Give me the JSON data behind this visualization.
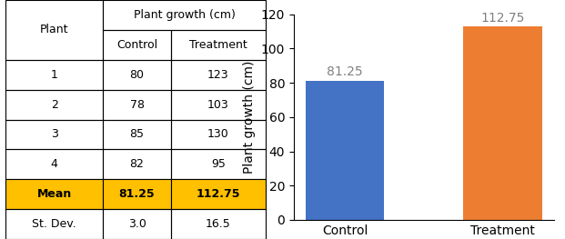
{
  "categories": [
    "Control",
    "Treatment"
  ],
  "values": [
    81.25,
    112.75
  ],
  "bar_colors": [
    "#4472c4",
    "#ed7d31"
  ],
  "ylabel": "Plant growth (cm)",
  "ylim": [
    0,
    120
  ],
  "yticks": [
    0,
    20,
    40,
    60,
    80,
    100,
    120
  ],
  "label_color": "#808080",
  "label_fontsize": 10,
  "tick_fontsize": 10,
  "ylabel_fontsize": 10,
  "bar_width": 0.5,
  "table_header": "Plant growth (cm)",
  "table_col1": "Plant",
  "table_col2": "Control",
  "table_col3": "Treatment",
  "table_rows": [
    [
      "1",
      "80",
      "123"
    ],
    [
      "2",
      "78",
      "103"
    ],
    [
      "3",
      "85",
      "130"
    ],
    [
      "4",
      "82",
      "95"
    ],
    [
      "Mean",
      "81.25",
      "112.75"
    ],
    [
      "St. Dev.",
      "3.0",
      "16.5"
    ]
  ],
  "mean_row_index": 4,
  "mean_bg_color": "#ffc000",
  "header_text_color": "#000000",
  "mean_text_bold": true,
  "border_color": "#000000",
  "font_size_table": 9
}
